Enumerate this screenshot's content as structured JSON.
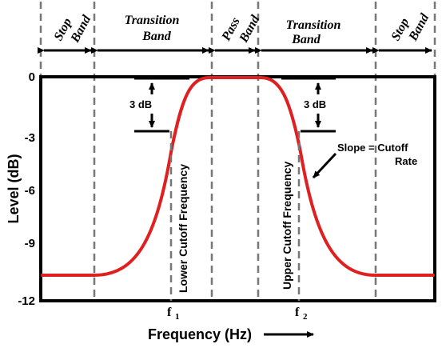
{
  "bands": [
    {
      "line1": "Stop",
      "line2": "Band"
    },
    {
      "line1": "Transition",
      "line2": "Band"
    },
    {
      "line1": "Pass",
      "line2": "Band"
    },
    {
      "line1": "Transition",
      "line2": "Band"
    },
    {
      "line1": "Stop",
      "line2": "Band"
    }
  ],
  "y_axis": {
    "title": "Level (dB)",
    "ticks": [
      "0",
      "-3",
      "-6",
      "-9",
      "-12"
    ]
  },
  "x_axis": {
    "title": "Frequency (Hz)",
    "f1": {
      "symbol": "f",
      "sub": "1"
    },
    "f2": {
      "symbol": "f",
      "sub": "2"
    }
  },
  "annotations": {
    "left_db": "3 dB",
    "right_db": "3 dB",
    "lower_cutoff": "Lower Cutoff Frequency",
    "upper_cutoff": "Upper Cutoff Frequency",
    "slope_line1": "Slope = Cutoff",
    "slope_line2": "Rate"
  },
  "colors": {
    "curve": "#e02020",
    "axes": "#000000",
    "dashes": "#777777"
  }
}
